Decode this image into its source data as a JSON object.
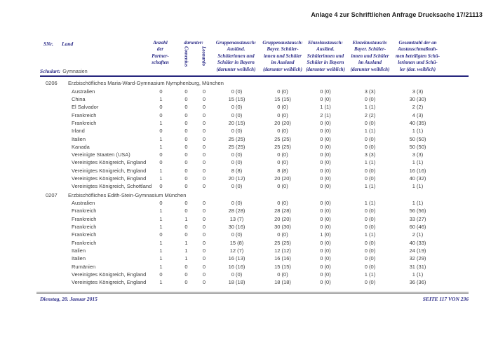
{
  "page": {
    "title": "Anlage 4 zur Schriftlichen Anfrage Drucksache 17/21113",
    "footer": {
      "date": "Dienstag, 20. Januar 2015",
      "page_info": "SEITE 117 VON 236"
    },
    "colors": {
      "navy": "#2a2a86",
      "body_text": "#3d3d3d",
      "title_text": "#1a1a1a",
      "rule_gray": "#9a9a9a"
    }
  },
  "table": {
    "schulart_label": "Schulart:",
    "schulart_value": "Gymnasien",
    "headers": {
      "snr": "SNr.",
      "land": "Land",
      "anzahl": "Anzahl\nder\nPartner-\nschaften",
      "darunter": "darunter:",
      "comenius": "Comenius",
      "leonardo": "Leonardo",
      "gruppe_bayern": "Gruppenaustausch:\nAusländ.\nSchülerinnen und\nSchüler in Bayern\n(darunter weiblich)",
      "gruppe_ausland": "Gruppenaustausch:\nBayer. Schüler-\ninnen und Schüler\nim Ausland\n(darunter weiblich)",
      "einzel_bayern": "Einzelaustausch:\nAusländ.\nSchülerinnen und\nSchüler in Bayern\n(darunter weiblich)",
      "einzel_ausland": "Einzelaustausch:\nBayer. Schüler-\ninnen und Schüler\nim Ausland\n(darunter weiblich)",
      "gesamt": "Gesamtzahl der an\nAustauschmaßnah-\nmen beteiligten Schü-\nlerinnen und Schü-\nler (dar. weiblich)"
    },
    "sections": [
      {
        "id": "0206",
        "name": "Erzbischöfliches Maria-Ward-Gymnasium Nymphenburg, München",
        "rows": [
          [
            "Australien",
            "0",
            "0",
            "0",
            "0 (0)",
            "0 (0)",
            "0 (0)",
            "3 (3)",
            "3 (3)"
          ],
          [
            "China",
            "1",
            "0",
            "0",
            "15 (15)",
            "15 (15)",
            "0 (0)",
            "0 (0)",
            "30 (30)"
          ],
          [
            "El Salvador",
            "0",
            "0",
            "0",
            "0 (0)",
            "0 (0)",
            "1 (1)",
            "1 (1)",
            "2 (2)"
          ],
          [
            "Frankreich",
            "0",
            "0",
            "0",
            "0 (0)",
            "0 (0)",
            "2 (1)",
            "2 (2)",
            "4 (3)"
          ],
          [
            "Frankreich",
            "1",
            "0",
            "0",
            "20 (15)",
            "20 (20)",
            "0 (0)",
            "0 (0)",
            "40 (35)"
          ],
          [
            "Irland",
            "0",
            "0",
            "0",
            "0 (0)",
            "0 (0)",
            "0 (0)",
            "1 (1)",
            "1 (1)"
          ],
          [
            "Italien",
            "1",
            "0",
            "0",
            "25 (25)",
            "25 (25)",
            "0 (0)",
            "0 (0)",
            "50 (50)"
          ],
          [
            "Kanada",
            "1",
            "0",
            "0",
            "25 (25)",
            "25 (25)",
            "0 (0)",
            "0 (0)",
            "50 (50)"
          ],
          [
            "Vereinigte Staaten (USA)",
            "0",
            "0",
            "0",
            "0 (0)",
            "0 (0)",
            "0 (0)",
            "3 (3)",
            "3 (3)"
          ],
          [
            "Vereinigtes Königreich, England",
            "0",
            "0",
            "0",
            "0 (0)",
            "0 (0)",
            "0 (0)",
            "1 (1)",
            "1 (1)"
          ],
          [
            "Vereinigtes Königreich, England",
            "1",
            "0",
            "0",
            "8 (8)",
            "8 (8)",
            "0 (0)",
            "0 (0)",
            "16 (16)"
          ],
          [
            "Vereinigtes Königreich, England",
            "1",
            "0",
            "0",
            "20 (12)",
            "20 (20)",
            "0 (0)",
            "0 (0)",
            "40 (32)"
          ],
          [
            "Vereinigtes Königreich, Schottland",
            "0",
            "0",
            "0",
            "0 (0)",
            "0 (0)",
            "0 (0)",
            "1 (1)",
            "1 (1)"
          ]
        ]
      },
      {
        "id": "0207",
        "name": "Erzbischöfliches Edith-Stein-Gymnasium München",
        "rows": [
          [
            "Australien",
            "0",
            "0",
            "0",
            "0 (0)",
            "0 (0)",
            "0 (0)",
            "1 (1)",
            "1 (1)"
          ],
          [
            "Frankreich",
            "1",
            "0",
            "0",
            "28 (28)",
            "28 (28)",
            "0 (0)",
            "0 (0)",
            "56 (56)"
          ],
          [
            "Frankreich",
            "1",
            "1",
            "0",
            "13 (7)",
            "20 (20)",
            "0 (0)",
            "0 (0)",
            "33 (27)"
          ],
          [
            "Frankreich",
            "1",
            "0",
            "0",
            "30 (16)",
            "30 (30)",
            "0 (0)",
            "0 (0)",
            "60 (46)"
          ],
          [
            "Frankreich",
            "0",
            "0",
            "0",
            "0 (0)",
            "0 (0)",
            "1 (0)",
            "1 (1)",
            "2 (1)"
          ],
          [
            "Frankreich",
            "1",
            "1",
            "0",
            "15 (8)",
            "25 (25)",
            "0 (0)",
            "0 (0)",
            "40 (33)"
          ],
          [
            "Italien",
            "1",
            "1",
            "0",
            "12 (7)",
            "12 (12)",
            "0 (0)",
            "0 (0)",
            "24 (19)"
          ],
          [
            "Italien",
            "1",
            "1",
            "0",
            "16 (13)",
            "16 (16)",
            "0 (0)",
            "0 (0)",
            "32 (29)"
          ],
          [
            "Rumänien",
            "1",
            "0",
            "0",
            "16 (16)",
            "15 (15)",
            "0 (0)",
            "0 (0)",
            "31 (31)"
          ],
          [
            "Vereinigtes Königreich, England",
            "0",
            "0",
            "0",
            "0 (0)",
            "0 (0)",
            "0 (0)",
            "1 (1)",
            "1 (1)"
          ],
          [
            "Vereinigtes Königreich, England",
            "1",
            "0",
            "0",
            "18 (18)",
            "18 (18)",
            "0 (0)",
            "0 (0)",
            "36 (36)"
          ]
        ]
      }
    ]
  }
}
